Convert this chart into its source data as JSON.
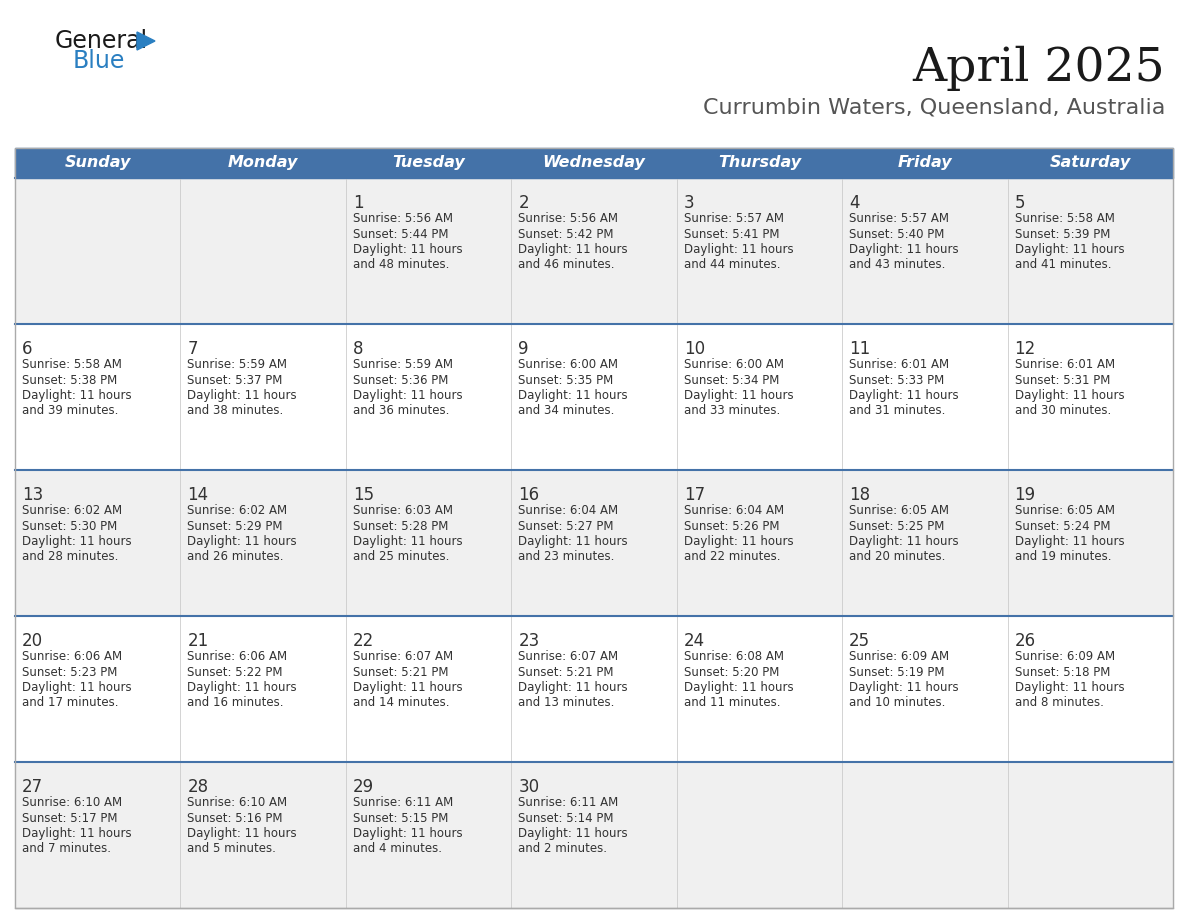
{
  "title": "April 2025",
  "subtitle": "Currumbin Waters, Queensland, Australia",
  "header_bg": "#4472a8",
  "header_text_color": "#ffffff",
  "days_of_week": [
    "Sunday",
    "Monday",
    "Tuesday",
    "Wednesday",
    "Thursday",
    "Friday",
    "Saturday"
  ],
  "row_bg_light": "#f0f0f0",
  "row_bg_white": "#ffffff",
  "divider_color": "#4472a8",
  "text_color": "#333333",
  "logo_general_color": "#1a1a1a",
  "logo_blue_color": "#2a7fc1",
  "weeks": [
    {
      "days": [
        {
          "date": "",
          "sunrise": "",
          "sunset": "",
          "daylight": ""
        },
        {
          "date": "",
          "sunrise": "",
          "sunset": "",
          "daylight": ""
        },
        {
          "date": "1",
          "sunrise": "5:56 AM",
          "sunset": "5:44 PM",
          "daylight": "11 hours\nand 48 minutes."
        },
        {
          "date": "2",
          "sunrise": "5:56 AM",
          "sunset": "5:42 PM",
          "daylight": "11 hours\nand 46 minutes."
        },
        {
          "date": "3",
          "sunrise": "5:57 AM",
          "sunset": "5:41 PM",
          "daylight": "11 hours\nand 44 minutes."
        },
        {
          "date": "4",
          "sunrise": "5:57 AM",
          "sunset": "5:40 PM",
          "daylight": "11 hours\nand 43 minutes."
        },
        {
          "date": "5",
          "sunrise": "5:58 AM",
          "sunset": "5:39 PM",
          "daylight": "11 hours\nand 41 minutes."
        }
      ]
    },
    {
      "days": [
        {
          "date": "6",
          "sunrise": "5:58 AM",
          "sunset": "5:38 PM",
          "daylight": "11 hours\nand 39 minutes."
        },
        {
          "date": "7",
          "sunrise": "5:59 AM",
          "sunset": "5:37 PM",
          "daylight": "11 hours\nand 38 minutes."
        },
        {
          "date": "8",
          "sunrise": "5:59 AM",
          "sunset": "5:36 PM",
          "daylight": "11 hours\nand 36 minutes."
        },
        {
          "date": "9",
          "sunrise": "6:00 AM",
          "sunset": "5:35 PM",
          "daylight": "11 hours\nand 34 minutes."
        },
        {
          "date": "10",
          "sunrise": "6:00 AM",
          "sunset": "5:34 PM",
          "daylight": "11 hours\nand 33 minutes."
        },
        {
          "date": "11",
          "sunrise": "6:01 AM",
          "sunset": "5:33 PM",
          "daylight": "11 hours\nand 31 minutes."
        },
        {
          "date": "12",
          "sunrise": "6:01 AM",
          "sunset": "5:31 PM",
          "daylight": "11 hours\nand 30 minutes."
        }
      ]
    },
    {
      "days": [
        {
          "date": "13",
          "sunrise": "6:02 AM",
          "sunset": "5:30 PM",
          "daylight": "11 hours\nand 28 minutes."
        },
        {
          "date": "14",
          "sunrise": "6:02 AM",
          "sunset": "5:29 PM",
          "daylight": "11 hours\nand 26 minutes."
        },
        {
          "date": "15",
          "sunrise": "6:03 AM",
          "sunset": "5:28 PM",
          "daylight": "11 hours\nand 25 minutes."
        },
        {
          "date": "16",
          "sunrise": "6:04 AM",
          "sunset": "5:27 PM",
          "daylight": "11 hours\nand 23 minutes."
        },
        {
          "date": "17",
          "sunrise": "6:04 AM",
          "sunset": "5:26 PM",
          "daylight": "11 hours\nand 22 minutes."
        },
        {
          "date": "18",
          "sunrise": "6:05 AM",
          "sunset": "5:25 PM",
          "daylight": "11 hours\nand 20 minutes."
        },
        {
          "date": "19",
          "sunrise": "6:05 AM",
          "sunset": "5:24 PM",
          "daylight": "11 hours\nand 19 minutes."
        }
      ]
    },
    {
      "days": [
        {
          "date": "20",
          "sunrise": "6:06 AM",
          "sunset": "5:23 PM",
          "daylight": "11 hours\nand 17 minutes."
        },
        {
          "date": "21",
          "sunrise": "6:06 AM",
          "sunset": "5:22 PM",
          "daylight": "11 hours\nand 16 minutes."
        },
        {
          "date": "22",
          "sunrise": "6:07 AM",
          "sunset": "5:21 PM",
          "daylight": "11 hours\nand 14 minutes."
        },
        {
          "date": "23",
          "sunrise": "6:07 AM",
          "sunset": "5:21 PM",
          "daylight": "11 hours\nand 13 minutes."
        },
        {
          "date": "24",
          "sunrise": "6:08 AM",
          "sunset": "5:20 PM",
          "daylight": "11 hours\nand 11 minutes."
        },
        {
          "date": "25",
          "sunrise": "6:09 AM",
          "sunset": "5:19 PM",
          "daylight": "11 hours\nand 10 minutes."
        },
        {
          "date": "26",
          "sunrise": "6:09 AM",
          "sunset": "5:18 PM",
          "daylight": "11 hours\nand 8 minutes."
        }
      ]
    },
    {
      "days": [
        {
          "date": "27",
          "sunrise": "6:10 AM",
          "sunset": "5:17 PM",
          "daylight": "11 hours\nand 7 minutes."
        },
        {
          "date": "28",
          "sunrise": "6:10 AM",
          "sunset": "5:16 PM",
          "daylight": "11 hours\nand 5 minutes."
        },
        {
          "date": "29",
          "sunrise": "6:11 AM",
          "sunset": "5:15 PM",
          "daylight": "11 hours\nand 4 minutes."
        },
        {
          "date": "30",
          "sunrise": "6:11 AM",
          "sunset": "5:14 PM",
          "daylight": "11 hours\nand 2 minutes."
        },
        {
          "date": "",
          "sunrise": "",
          "sunset": "",
          "daylight": ""
        },
        {
          "date": "",
          "sunrise": "",
          "sunset": "",
          "daylight": ""
        },
        {
          "date": "",
          "sunrise": "",
          "sunset": "",
          "daylight": ""
        }
      ]
    }
  ]
}
